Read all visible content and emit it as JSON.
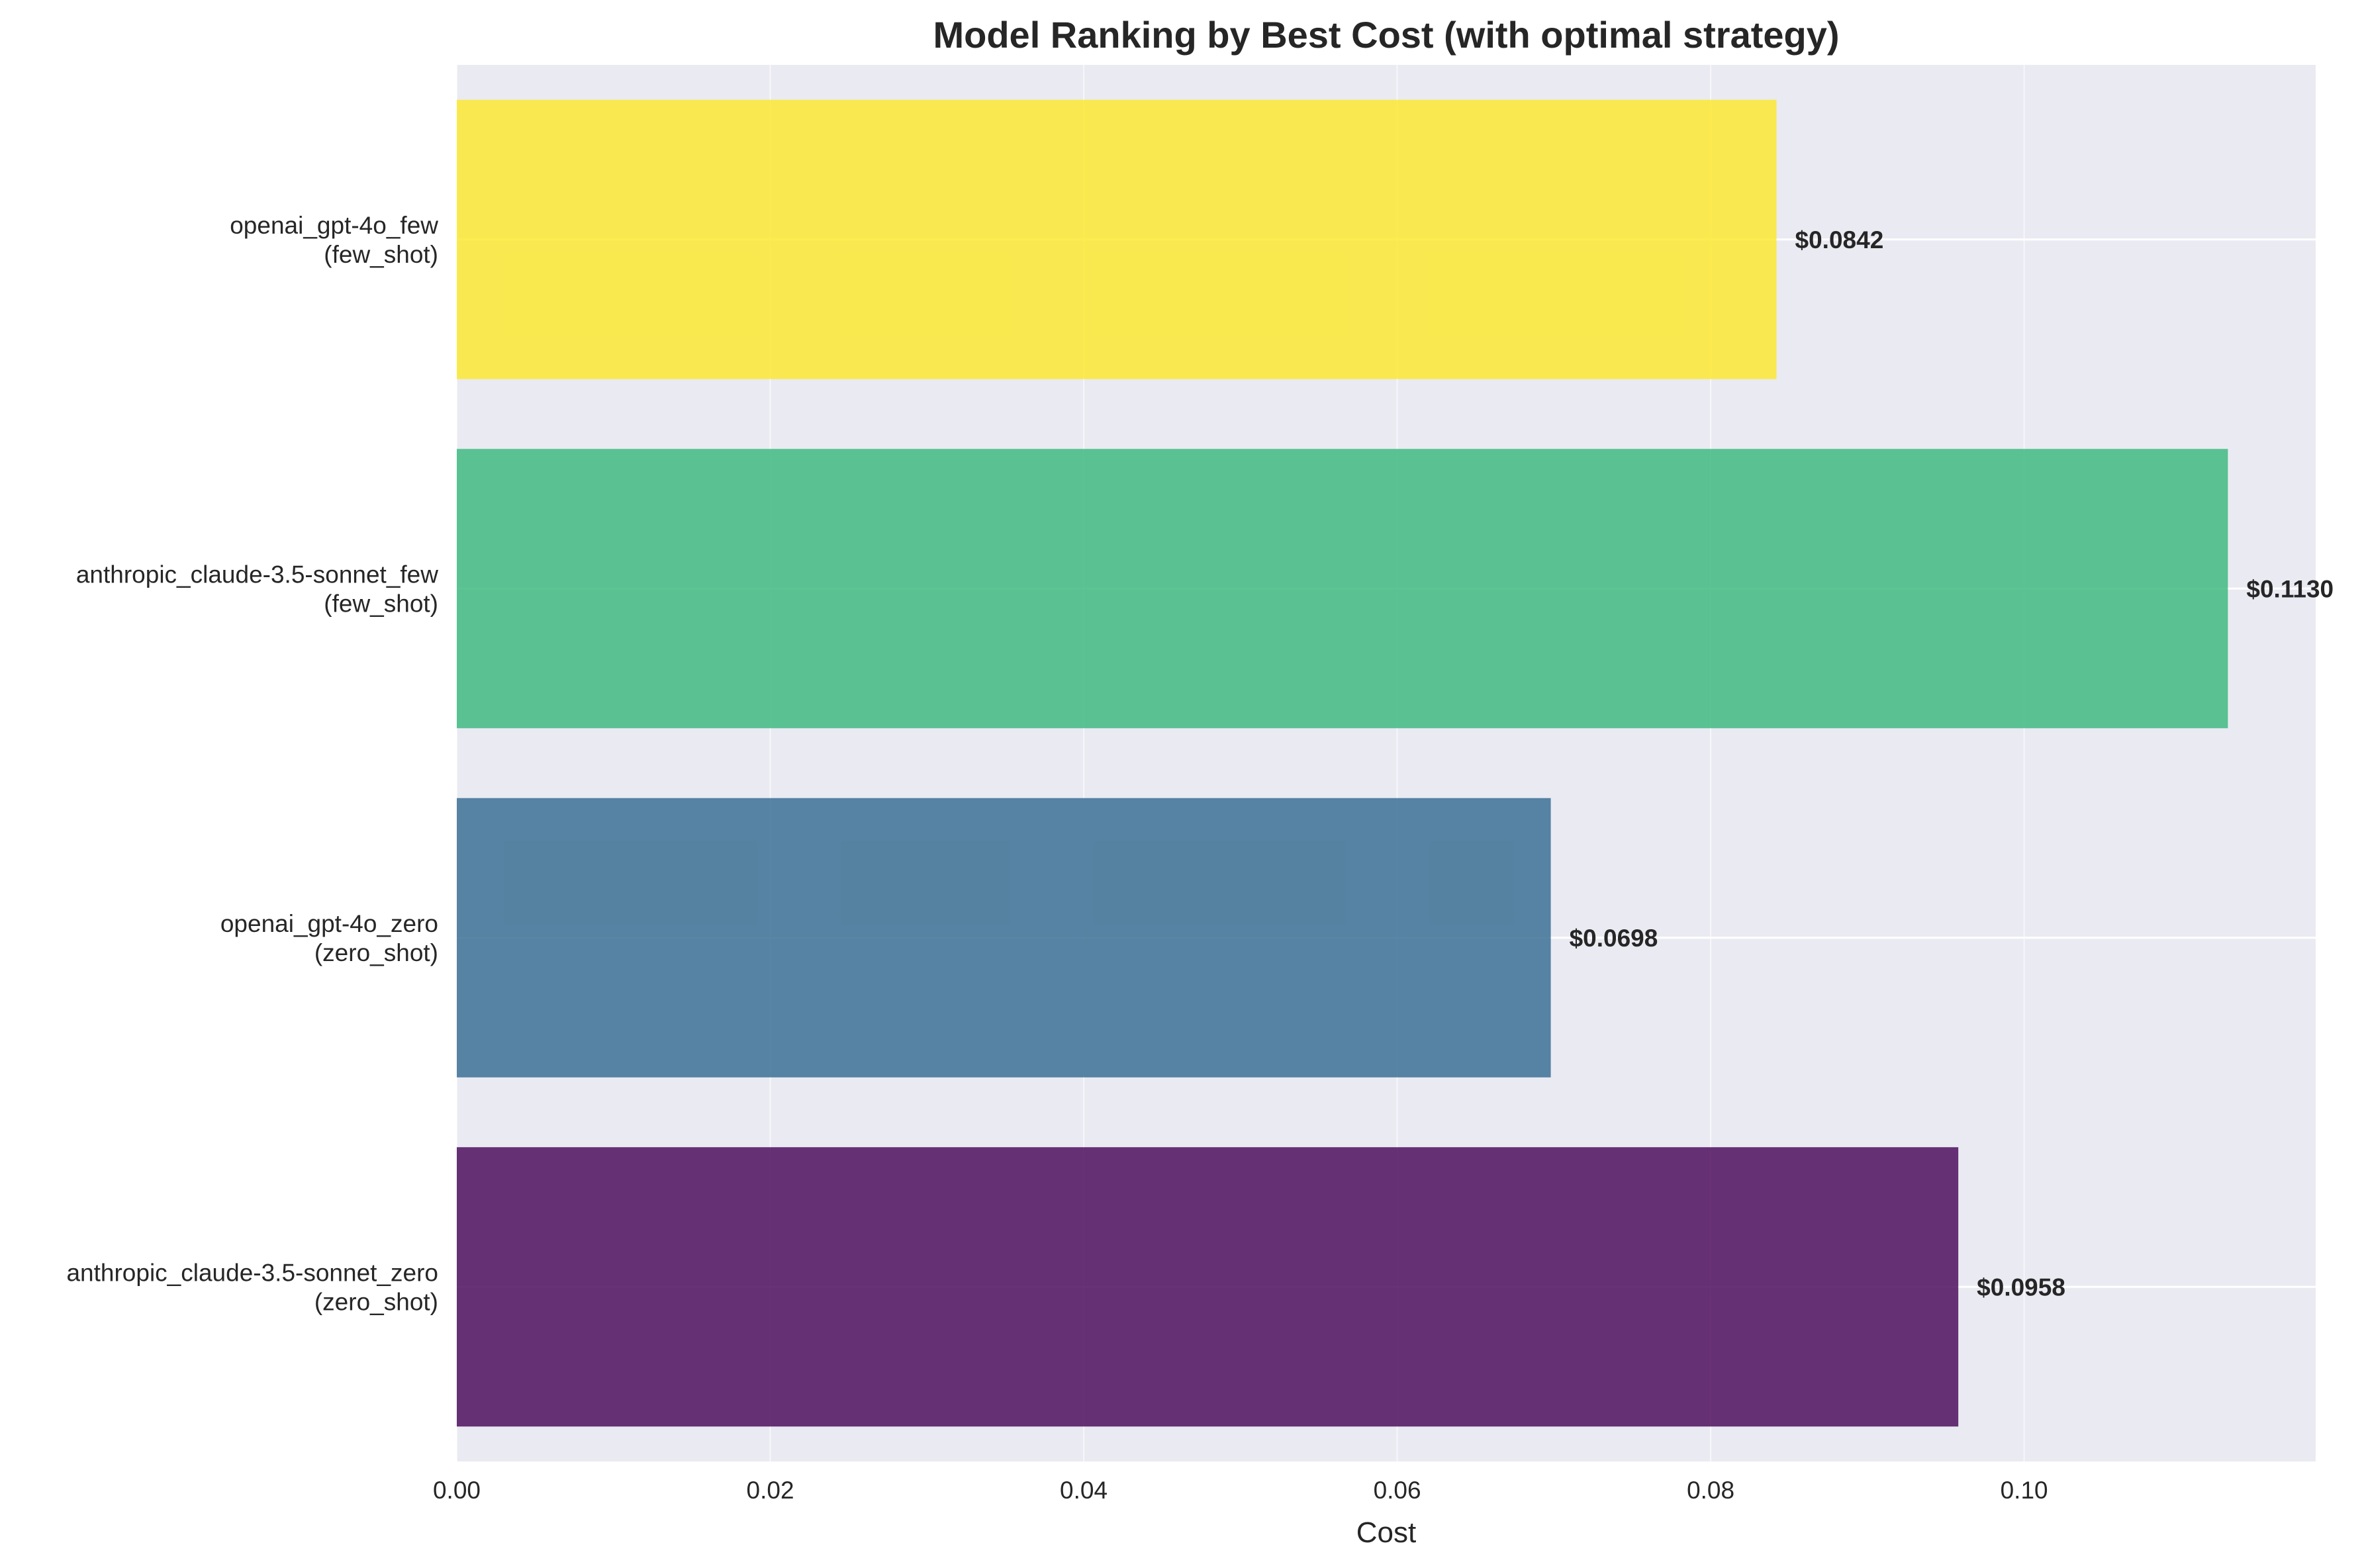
{
  "chart_data": {
    "type": "bar",
    "orientation": "horizontal",
    "title": "Model Ranking by Best Cost (with optimal strategy)",
    "xlabel": "Cost",
    "ylabel": "",
    "xlim": [
      0,
      0.1186
    ],
    "xticks": [
      0.0,
      0.02,
      0.04,
      0.06,
      0.08,
      0.1
    ],
    "xtick_labels": [
      "0.00",
      "0.02",
      "0.04",
      "0.06",
      "0.08",
      "0.10"
    ],
    "grid": true,
    "categories": [
      [
        "anthropic_claude-3.5-sonnet_zero",
        "(zero_shot)"
      ],
      [
        "openai_gpt-4o_zero",
        "(zero_shot)"
      ],
      [
        "anthropic_claude-3.5-sonnet_few",
        "(few_shot)"
      ],
      [
        "openai_gpt-4o_few",
        "(few_shot)"
      ]
    ],
    "values": [
      0.0958,
      0.0698,
      0.113,
      0.0842
    ],
    "value_labels": [
      "$0.0958",
      "$0.0698",
      "$0.1130",
      "$0.0842"
    ],
    "colors": [
      "#440154",
      "#31688e",
      "#35b779",
      "#fde725"
    ],
    "background": "#eaeaf2",
    "grid_color": "#ffffff"
  }
}
